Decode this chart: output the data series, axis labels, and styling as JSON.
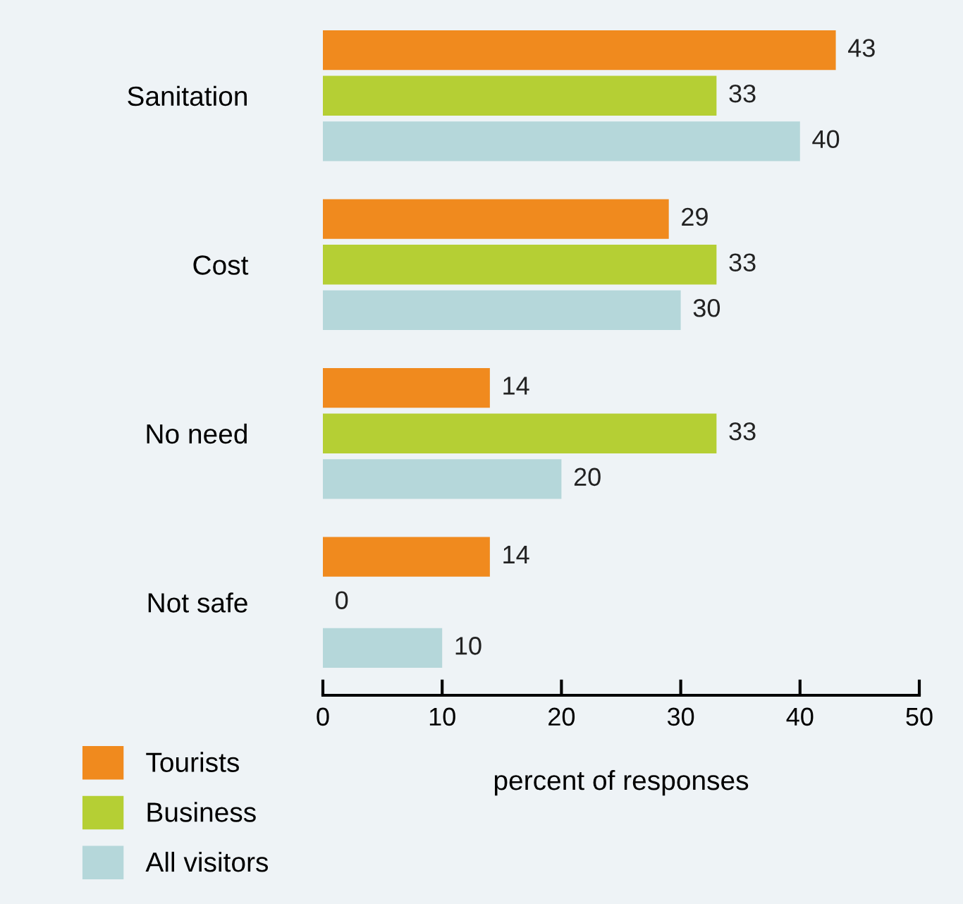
{
  "chart_data": {
    "type": "bar",
    "orientation": "horizontal",
    "categories": [
      "Sanitation",
      "Cost",
      "No need",
      "Not safe"
    ],
    "series": [
      {
        "name": "Tourists",
        "color": "#f08a1e",
        "values": [
          43,
          29,
          14,
          14
        ]
      },
      {
        "name": "Business",
        "color": "#b5cf34",
        "values": [
          33,
          33,
          33,
          0
        ]
      },
      {
        "name": "All visitors",
        "color": "#b5d7da",
        "values": [
          40,
          30,
          20,
          10
        ]
      }
    ],
    "xlabel": "percent of responses",
    "xlim": [
      0,
      50
    ],
    "xticks": [
      0,
      10,
      20,
      30,
      40,
      50
    ],
    "data_labels": true,
    "legend": "bottom left",
    "grid": false
  }
}
